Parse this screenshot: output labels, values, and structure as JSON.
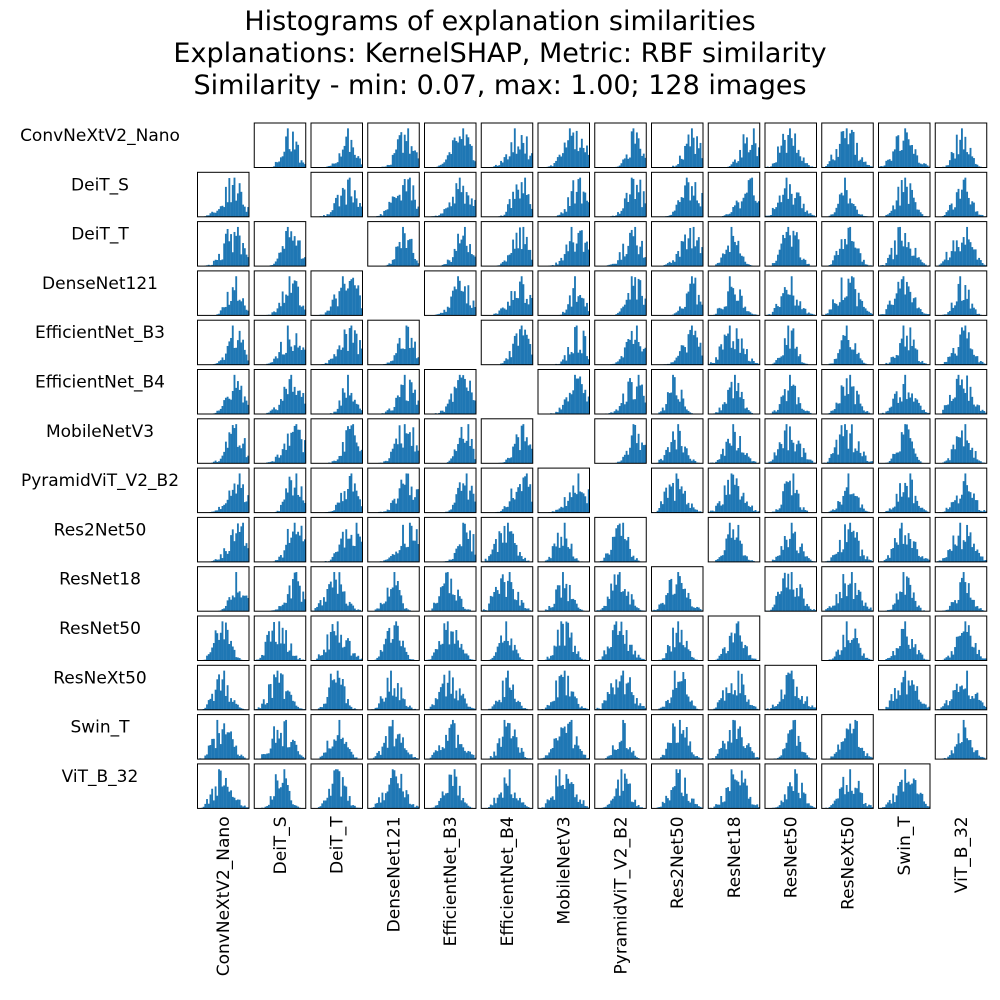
{
  "chart_data": {
    "type": "histogram-matrix",
    "title": "Histograms of explanation similarities",
    "subtitle_1": "Explanations: KernelSHAP, Metric: RBF similarity",
    "subtitle_2": "Similarity - min: 0.07, max: 1.00; 128 images",
    "models": [
      "ConvNeXtV2_Nano",
      "DeiT_S",
      "DeiT_T",
      "DenseNet121",
      "EfficientNet_B3",
      "EfficientNet_B4",
      "MobileNetV3",
      "PyramidViT_V2_B2",
      "Res2Net50",
      "ResNet18",
      "ResNet50",
      "ResNeXt50",
      "Swin_T",
      "ViT_B_32"
    ],
    "similarity_range": [
      0.07,
      1.0
    ],
    "n_images": 128,
    "diagonal": "empty",
    "bar_color": "#1f77b4",
    "bins": 30
  }
}
